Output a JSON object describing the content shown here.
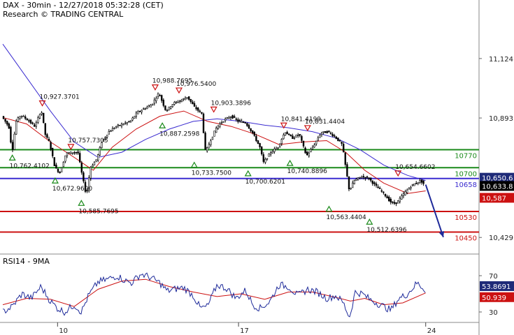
{
  "header": {
    "title": "DAX - 30min - 12/27/2018 05:32:28 (CET)",
    "subtitle": "Research © TRADING CENTRAL"
  },
  "rsi_panel": {
    "title": "RSI14 - 9MA"
  },
  "chart_data": {
    "type": "candlestick-with-indicators",
    "price_axis": {
      "ylim": [
        10370,
        11270
      ],
      "ticks": [
        10429,
        10893,
        11124
      ]
    },
    "x_axis": {
      "tick_labels": [
        {
          "label": "10",
          "pos": 0.115
        },
        {
          "label": "17",
          "pos": 0.495
        },
        {
          "label": "24",
          "pos": 0.888
        }
      ]
    },
    "price_path": [
      [
        0.0,
        10900
      ],
      [
        0.015,
        10860
      ],
      [
        0.022,
        10760
      ],
      [
        0.03,
        10880
      ],
      [
        0.04,
        10905
      ],
      [
        0.055,
        10885
      ],
      [
        0.07,
        10860
      ],
      [
        0.083,
        10925
      ],
      [
        0.092,
        10825
      ],
      [
        0.1,
        10800
      ],
      [
        0.112,
        10700
      ],
      [
        0.122,
        10680
      ],
      [
        0.135,
        10755
      ],
      [
        0.15,
        10760
      ],
      [
        0.16,
        10760
      ],
      [
        0.17,
        10660
      ],
      [
        0.178,
        10590
      ],
      [
        0.186,
        10700
      ],
      [
        0.2,
        10735
      ],
      [
        0.21,
        10800
      ],
      [
        0.225,
        10840
      ],
      [
        0.24,
        10860
      ],
      [
        0.255,
        10870
      ],
      [
        0.27,
        10880
      ],
      [
        0.285,
        10915
      ],
      [
        0.3,
        10930
      ],
      [
        0.315,
        10945
      ],
      [
        0.33,
        10990
      ],
      [
        0.345,
        10920
      ],
      [
        0.36,
        10950
      ],
      [
        0.375,
        10960
      ],
      [
        0.39,
        10975
      ],
      [
        0.405,
        10935
      ],
      [
        0.42,
        10910
      ],
      [
        0.428,
        10760
      ],
      [
        0.437,
        10800
      ],
      [
        0.452,
        10860
      ],
      [
        0.467,
        10885
      ],
      [
        0.482,
        10900
      ],
      [
        0.497,
        10880
      ],
      [
        0.512,
        10875
      ],
      [
        0.527,
        10835
      ],
      [
        0.542,
        10780
      ],
      [
        0.55,
        10720
      ],
      [
        0.565,
        10760
      ],
      [
        0.58,
        10780
      ],
      [
        0.595,
        10840
      ],
      [
        0.61,
        10815
      ],
      [
        0.625,
        10830
      ],
      [
        0.64,
        10745
      ],
      [
        0.655,
        10785
      ],
      [
        0.67,
        10835
      ],
      [
        0.685,
        10840
      ],
      [
        0.7,
        10820
      ],
      [
        0.715,
        10790
      ],
      [
        0.73,
        10610
      ],
      [
        0.74,
        10650
      ],
      [
        0.755,
        10665
      ],
      [
        0.77,
        10660
      ],
      [
        0.785,
        10630
      ],
      [
        0.8,
        10605
      ],
      [
        0.815,
        10570
      ],
      [
        0.822,
        10560
      ],
      [
        0.83,
        10565
      ],
      [
        0.845,
        10600
      ],
      [
        0.86,
        10630
      ],
      [
        0.87,
        10640
      ],
      [
        0.88,
        10650
      ],
      [
        0.888,
        10634
      ]
    ],
    "ma_fast": [
      [
        0.0,
        10895
      ],
      [
        0.05,
        10870
      ],
      [
        0.1,
        10800
      ],
      [
        0.15,
        10740
      ],
      [
        0.19,
        10690
      ],
      [
        0.23,
        10780
      ],
      [
        0.28,
        10850
      ],
      [
        0.33,
        10900
      ],
      [
        0.38,
        10920
      ],
      [
        0.43,
        10880
      ],
      [
        0.48,
        10860
      ],
      [
        0.53,
        10830
      ],
      [
        0.58,
        10790
      ],
      [
        0.63,
        10800
      ],
      [
        0.68,
        10805
      ],
      [
        0.72,
        10760
      ],
      [
        0.76,
        10690
      ],
      [
        0.8,
        10640
      ],
      [
        0.85,
        10600
      ],
      [
        0.888,
        10610
      ]
    ],
    "ma_slow": [
      [
        0.0,
        11180
      ],
      [
        0.05,
        11050
      ],
      [
        0.1,
        10920
      ],
      [
        0.15,
        10800
      ],
      [
        0.2,
        10740
      ],
      [
        0.25,
        10760
      ],
      [
        0.3,
        10810
      ],
      [
        0.35,
        10850
      ],
      [
        0.4,
        10880
      ],
      [
        0.45,
        10890
      ],
      [
        0.5,
        10880
      ],
      [
        0.55,
        10865
      ],
      [
        0.6,
        10855
      ],
      [
        0.65,
        10840
      ],
      [
        0.7,
        10815
      ],
      [
        0.75,
        10770
      ],
      [
        0.8,
        10710
      ],
      [
        0.85,
        10670
      ],
      [
        0.888,
        10650
      ]
    ],
    "projection": {
      "from": [
        0.888,
        10634
      ],
      "to": [
        0.925,
        10430
      ]
    },
    "levels": [
      {
        "label": "10770",
        "value": 10770,
        "color": "#1a8a1a"
      },
      {
        "label": "10700",
        "value": 10700,
        "color": "#1a8a1a"
      },
      {
        "label": "10658",
        "value": 10658,
        "color": "#3a2bd0"
      },
      {
        "label": "10530",
        "value": 10530,
        "color": "#cc1111"
      },
      {
        "label": "10450",
        "value": 10450,
        "color": "#cc1111"
      }
    ],
    "price_tags": [
      {
        "label": "10,650.6",
        "value": 10661,
        "bg": "#1e2a78",
        "fg": "#ffffff"
      },
      {
        "label": "10,633.8",
        "value": 10629,
        "bg": "#000000",
        "fg": "#ffffff"
      },
      {
        "label": "10,587",
        "value": 10583,
        "bg": "#cc1111",
        "fg": "#ffffff"
      }
    ],
    "annotations": [
      {
        "label": "10,927.3701",
        "x": 0.083,
        "value": 10927,
        "kind": "high"
      },
      {
        "label": "10,988.7695",
        "x": 0.32,
        "value": 10989,
        "kind": "high"
      },
      {
        "label": "10,976.5400",
        "x": 0.37,
        "value": 10977,
        "kind": "high"
      },
      {
        "label": "10,757.7305",
        "x": 0.143,
        "value": 10758,
        "kind": "high"
      },
      {
        "label": "10,903.3896",
        "x": 0.443,
        "value": 10903,
        "kind": "high"
      },
      {
        "label": "10,841.4199",
        "x": 0.59,
        "value": 10841,
        "kind": "high"
      },
      {
        "label": "10,831.4404",
        "x": 0.64,
        "value": 10831,
        "kind": "high"
      },
      {
        "label": "10,654.6602",
        "x": 0.83,
        "value": 10655,
        "kind": "high"
      },
      {
        "label": "10,762.4102",
        "x": 0.02,
        "value": 10762,
        "kind": "low"
      },
      {
        "label": "10,672.9600",
        "x": 0.11,
        "value": 10673,
        "kind": "low"
      },
      {
        "label": "10,585.7695",
        "x": 0.165,
        "value": 10586,
        "kind": "low"
      },
      {
        "label": "10,887.2598",
        "x": 0.335,
        "value": 10887,
        "kind": "low"
      },
      {
        "label": "10,733.7500",
        "x": 0.402,
        "value": 10734,
        "kind": "low"
      },
      {
        "label": "10,700.6201",
        "x": 0.515,
        "value": 10701,
        "kind": "low"
      },
      {
        "label": "10,740.8896",
        "x": 0.603,
        "value": 10741,
        "kind": "low"
      },
      {
        "label": "10,563.4404",
        "x": 0.685,
        "value": 10563,
        "kind": "low"
      },
      {
        "label": "10,512.6396",
        "x": 0.77,
        "value": 10513,
        "kind": "low"
      }
    ],
    "rsi": {
      "ylim": [
        20,
        80
      ],
      "ticks": [
        30,
        70
      ],
      "current": {
        "label": "53.8691",
        "value": 53.87,
        "bg": "#1e2a78"
      },
      "ma_current": {
        "label": "50.939",
        "value": 50.94,
        "bg": "#cc1111"
      },
      "rsi_series": [
        [
          0.0,
          30
        ],
        [
          0.02,
          36
        ],
        [
          0.04,
          50
        ],
        [
          0.06,
          45
        ],
        [
          0.08,
          58
        ],
        [
          0.1,
          42
        ],
        [
          0.115,
          34
        ],
        [
          0.13,
          30
        ],
        [
          0.15,
          38
        ],
        [
          0.165,
          30
        ],
        [
          0.18,
          48
        ],
        [
          0.2,
          63
        ],
        [
          0.22,
          66
        ],
        [
          0.24,
          70
        ],
        [
          0.255,
          65
        ],
        [
          0.27,
          62
        ],
        [
          0.29,
          72
        ],
        [
          0.31,
          68
        ],
        [
          0.33,
          62
        ],
        [
          0.345,
          53
        ],
        [
          0.36,
          55
        ],
        [
          0.38,
          57
        ],
        [
          0.4,
          48
        ],
        [
          0.415,
          34
        ],
        [
          0.43,
          36
        ],
        [
          0.45,
          60
        ],
        [
          0.47,
          56
        ],
        [
          0.49,
          45
        ],
        [
          0.51,
          54
        ],
        [
          0.525,
          38
        ],
        [
          0.54,
          34
        ],
        [
          0.56,
          41
        ],
        [
          0.58,
          60
        ],
        [
          0.6,
          58
        ],
        [
          0.62,
          48
        ],
        [
          0.64,
          55
        ],
        [
          0.66,
          52
        ],
        [
          0.68,
          45
        ],
        [
          0.7,
          48
        ],
        [
          0.715,
          40
        ],
        [
          0.728,
          24
        ],
        [
          0.74,
          52
        ],
        [
          0.755,
          50
        ],
        [
          0.77,
          44
        ],
        [
          0.785,
          40
        ],
        [
          0.8,
          36
        ],
        [
          0.815,
          32
        ],
        [
          0.83,
          44
        ],
        [
          0.85,
          50
        ],
        [
          0.87,
          62
        ],
        [
          0.888,
          54
        ]
      ],
      "ma_series": [
        [
          0.0,
          38
        ],
        [
          0.05,
          45
        ],
        [
          0.1,
          44
        ],
        [
          0.15,
          36
        ],
        [
          0.2,
          55
        ],
        [
          0.25,
          64
        ],
        [
          0.3,
          66
        ],
        [
          0.35,
          58
        ],
        [
          0.4,
          52
        ],
        [
          0.45,
          47
        ],
        [
          0.5,
          50
        ],
        [
          0.55,
          44
        ],
        [
          0.6,
          52
        ],
        [
          0.65,
          52
        ],
        [
          0.7,
          46
        ],
        [
          0.73,
          42
        ],
        [
          0.76,
          45
        ],
        [
          0.8,
          38
        ],
        [
          0.84,
          40
        ],
        [
          0.888,
          51
        ]
      ]
    }
  }
}
